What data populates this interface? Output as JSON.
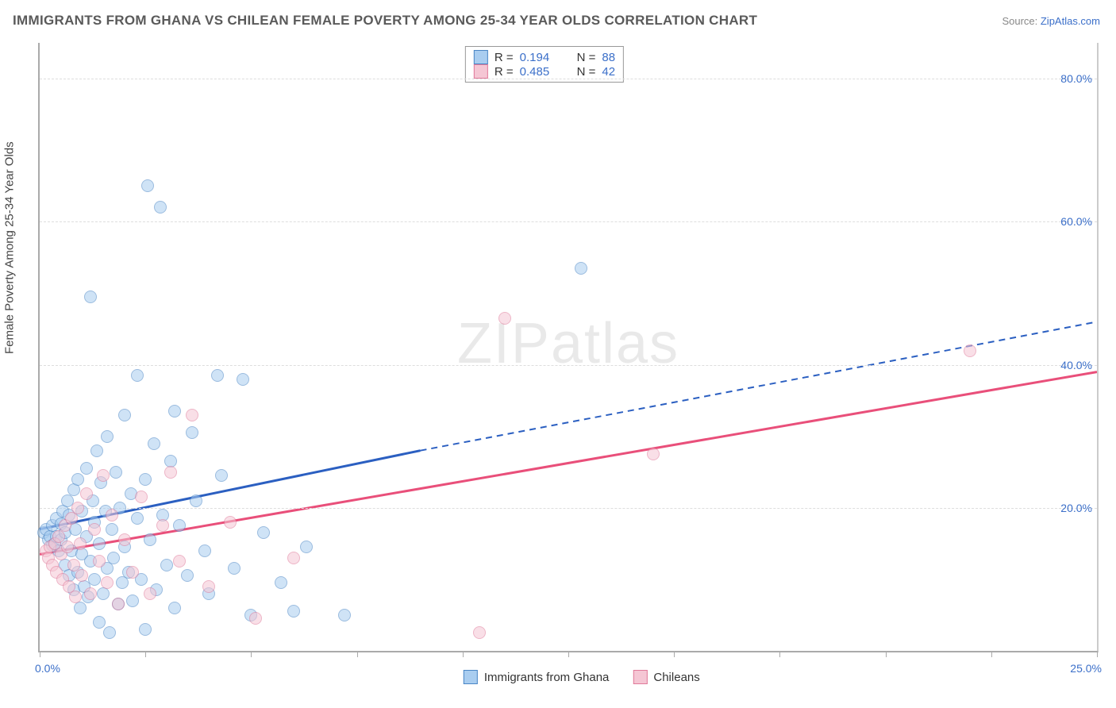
{
  "title": "IMMIGRANTS FROM GHANA VS CHILEAN FEMALE POVERTY AMONG 25-34 YEAR OLDS CORRELATION CHART",
  "source_prefix": "Source: ",
  "source_link": "ZipAtlas.com",
  "ylabel": "Female Poverty Among 25-34 Year Olds",
  "watermark_a": "ZIP",
  "watermark_b": "atlas",
  "chart": {
    "type": "scatter",
    "x_min": 0,
    "x_max": 25,
    "y_min": 0,
    "y_max": 85,
    "x_origin_label": "0.0%",
    "x_max_label": "25.0%",
    "y_ticks": [
      {
        "v": 20,
        "label": "20.0%"
      },
      {
        "v": 40,
        "label": "40.0%"
      },
      {
        "v": 60,
        "label": "60.0%"
      },
      {
        "v": 80,
        "label": "80.0%"
      }
    ],
    "x_tick_step": 2.5,
    "grid_color": "#dddddd",
    "background_color": "#ffffff",
    "point_radius": 8,
    "point_opacity": 0.55,
    "series": [
      {
        "key": "ghana",
        "label": "Immigrants from Ghana",
        "color_fill": "#a9cdf0",
        "color_stroke": "#4a86c5",
        "trend": {
          "color": "#2b5fc1",
          "width": 3,
          "x1": 0,
          "y1": 17.0,
          "x_solid_end": 9.0,
          "y_solid_end": 28.0,
          "x2": 25,
          "y2": 46.0
        },
        "R_label": "R =",
        "R": "0.194",
        "N_label": "N =",
        "N": "88",
        "points": [
          [
            0.1,
            16.5
          ],
          [
            0.2,
            15.5
          ],
          [
            0.15,
            17.0
          ],
          [
            0.25,
            16.0
          ],
          [
            0.3,
            14.8
          ],
          [
            0.3,
            17.5
          ],
          [
            0.35,
            15.0
          ],
          [
            0.4,
            16.0
          ],
          [
            0.4,
            18.5
          ],
          [
            0.45,
            14.0
          ],
          [
            0.5,
            15.5
          ],
          [
            0.5,
            17.8
          ],
          [
            0.55,
            19.5
          ],
          [
            0.6,
            12.0
          ],
          [
            0.6,
            16.5
          ],
          [
            0.65,
            21.0
          ],
          [
            0.7,
            10.5
          ],
          [
            0.7,
            19.0
          ],
          [
            0.75,
            14.0
          ],
          [
            0.8,
            22.5
          ],
          [
            0.8,
            8.5
          ],
          [
            0.85,
            17.0
          ],
          [
            0.9,
            11.0
          ],
          [
            0.9,
            24.0
          ],
          [
            0.95,
            6.0
          ],
          [
            1.0,
            13.5
          ],
          [
            1.0,
            19.5
          ],
          [
            1.05,
            9.0
          ],
          [
            1.1,
            16.0
          ],
          [
            1.1,
            25.5
          ],
          [
            1.15,
            7.5
          ],
          [
            1.2,
            12.5
          ],
          [
            1.2,
            49.5
          ],
          [
            1.25,
            21.0
          ],
          [
            1.3,
            10.0
          ],
          [
            1.3,
            18.0
          ],
          [
            1.35,
            28.0
          ],
          [
            1.4,
            4.0
          ],
          [
            1.4,
            15.0
          ],
          [
            1.45,
            23.5
          ],
          [
            1.5,
            8.0
          ],
          [
            1.55,
            19.5
          ],
          [
            1.6,
            11.5
          ],
          [
            1.6,
            30.0
          ],
          [
            1.65,
            2.5
          ],
          [
            1.7,
            17.0
          ],
          [
            1.75,
            13.0
          ],
          [
            1.8,
            25.0
          ],
          [
            1.85,
            6.5
          ],
          [
            1.9,
            20.0
          ],
          [
            1.95,
            9.5
          ],
          [
            2.0,
            14.5
          ],
          [
            2.0,
            33.0
          ],
          [
            2.1,
            11.0
          ],
          [
            2.15,
            22.0
          ],
          [
            2.2,
            7.0
          ],
          [
            2.3,
            18.5
          ],
          [
            2.3,
            38.5
          ],
          [
            2.4,
            10.0
          ],
          [
            2.5,
            24.0
          ],
          [
            2.5,
            3.0
          ],
          [
            2.55,
            65.0
          ],
          [
            2.6,
            15.5
          ],
          [
            2.7,
            29.0
          ],
          [
            2.75,
            8.5
          ],
          [
            2.85,
            62.0
          ],
          [
            2.9,
            19.0
          ],
          [
            3.0,
            12.0
          ],
          [
            3.1,
            26.5
          ],
          [
            3.2,
            6.0
          ],
          [
            3.2,
            33.5
          ],
          [
            3.3,
            17.5
          ],
          [
            3.5,
            10.5
          ],
          [
            3.6,
            30.5
          ],
          [
            3.7,
            21.0
          ],
          [
            3.9,
            14.0
          ],
          [
            4.0,
            8.0
          ],
          [
            4.2,
            38.5
          ],
          [
            4.3,
            24.5
          ],
          [
            4.6,
            11.5
          ],
          [
            4.8,
            38.0
          ],
          [
            5.0,
            5.0
          ],
          [
            5.3,
            16.5
          ],
          [
            5.7,
            9.5
          ],
          [
            6.0,
            5.5
          ],
          [
            6.3,
            14.5
          ],
          [
            7.2,
            5.0
          ],
          [
            12.8,
            53.5
          ]
        ]
      },
      {
        "key": "chile",
        "label": "Chileans",
        "color_fill": "#f5c6d4",
        "color_stroke": "#e07a9a",
        "trend": {
          "color": "#e94f7a",
          "width": 3,
          "x1": 0,
          "y1": 13.5,
          "x_solid_end": 25,
          "y_solid_end": 39.0,
          "x2": 25,
          "y2": 39.0
        },
        "R_label": "R =",
        "R": "0.485",
        "N_label": "N =",
        "N": "42",
        "points": [
          [
            0.15,
            14.0
          ],
          [
            0.2,
            13.0
          ],
          [
            0.25,
            14.5
          ],
          [
            0.3,
            12.0
          ],
          [
            0.35,
            15.0
          ],
          [
            0.4,
            11.0
          ],
          [
            0.45,
            16.0
          ],
          [
            0.5,
            13.5
          ],
          [
            0.55,
            10.0
          ],
          [
            0.6,
            17.5
          ],
          [
            0.65,
            14.5
          ],
          [
            0.7,
            9.0
          ],
          [
            0.75,
            18.5
          ],
          [
            0.8,
            12.0
          ],
          [
            0.85,
            7.5
          ],
          [
            0.9,
            20.0
          ],
          [
            0.95,
            15.0
          ],
          [
            1.0,
            10.5
          ],
          [
            1.1,
            22.0
          ],
          [
            1.2,
            8.0
          ],
          [
            1.3,
            17.0
          ],
          [
            1.4,
            12.5
          ],
          [
            1.5,
            24.5
          ],
          [
            1.6,
            9.5
          ],
          [
            1.7,
            19.0
          ],
          [
            1.85,
            6.5
          ],
          [
            2.0,
            15.5
          ],
          [
            2.2,
            11.0
          ],
          [
            2.4,
            21.5
          ],
          [
            2.6,
            8.0
          ],
          [
            2.9,
            17.5
          ],
          [
            3.1,
            25.0
          ],
          [
            3.3,
            12.5
          ],
          [
            3.6,
            33.0
          ],
          [
            4.0,
            9.0
          ],
          [
            4.5,
            18.0
          ],
          [
            5.1,
            4.5
          ],
          [
            6.0,
            13.0
          ],
          [
            10.4,
            2.5
          ],
          [
            11.0,
            46.5
          ],
          [
            14.5,
            27.5
          ],
          [
            22.0,
            42.0
          ]
        ]
      }
    ]
  }
}
